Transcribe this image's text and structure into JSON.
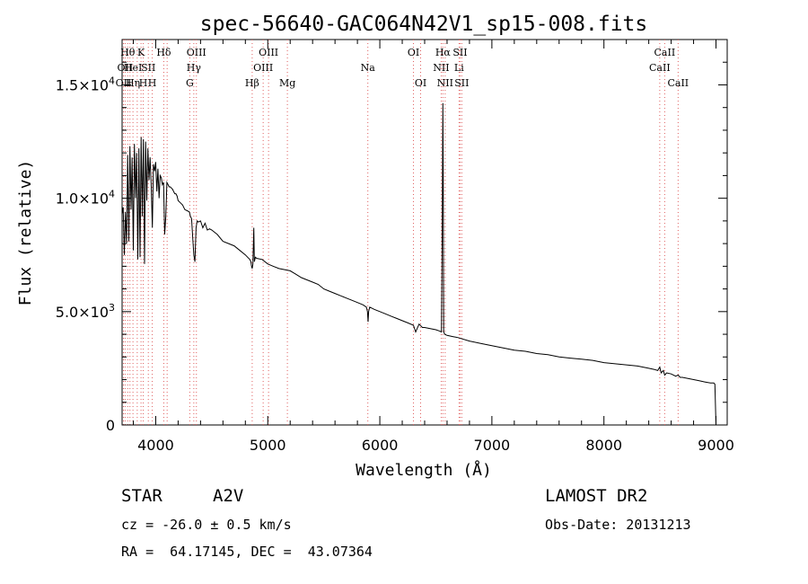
{
  "chart_data": {
    "type": "line",
    "title": "spec-56640-GAC064N42V1_sp15-008.fits",
    "xlabel": "Wavelength (Å)",
    "ylabel": "Flux (relative)",
    "xlim": [
      3700,
      9100
    ],
    "ylim": [
      0,
      17000
    ],
    "x_ticks": [
      4000,
      5000,
      6000,
      7000,
      8000,
      9000
    ],
    "x_tick_labels": [
      "4000",
      "5000",
      "6000",
      "7000",
      "8000",
      "9000"
    ],
    "y_ticks": [
      0,
      5000,
      10000,
      15000
    ],
    "y_tick_labels": [
      {
        "base": "0",
        "exp": ""
      },
      {
        "base": "5.0×10",
        "exp": "3"
      },
      {
        "base": "1.0×10",
        "exp": "4"
      },
      {
        "base": "1.5×10",
        "exp": "4"
      }
    ],
    "grid": false,
    "spectrum": {
      "x": [
        3700,
        3710,
        3720,
        3730,
        3740,
        3750,
        3760,
        3770,
        3780,
        3790,
        3800,
        3810,
        3820,
        3830,
        3840,
        3850,
        3860,
        3870,
        3880,
        3890,
        3900,
        3910,
        3920,
        3930,
        3940,
        3950,
        3960,
        3970,
        3980,
        3990,
        4000,
        4010,
        4020,
        4030,
        4040,
        4050,
        4060,
        4070,
        4080,
        4090,
        4100,
        4110,
        4120,
        4130,
        4140,
        4150,
        4160,
        4170,
        4180,
        4190,
        4200,
        4220,
        4240,
        4260,
        4280,
        4300,
        4310,
        4320,
        4330,
        4340,
        4350,
        4360,
        4370,
        4380,
        4400,
        4420,
        4440,
        4460,
        4480,
        4500,
        4550,
        4600,
        4650,
        4700,
        4750,
        4800,
        4820,
        4840,
        4850,
        4855,
        4861,
        4867,
        4875,
        4880,
        4890,
        4900,
        4950,
        5000,
        5050,
        5100,
        5150,
        5200,
        5250,
        5300,
        5350,
        5400,
        5450,
        5500,
        5550,
        5600,
        5650,
        5700,
        5750,
        5800,
        5850,
        5880,
        5890,
        5895,
        5900,
        5910,
        5950,
        6000,
        6050,
        6100,
        6150,
        6200,
        6250,
        6300,
        6320,
        6350,
        6380,
        6400,
        6450,
        6500,
        6530,
        6550,
        6556,
        6560,
        6563,
        6566,
        6570,
        6580,
        6600,
        6650,
        6700,
        6800,
        6900,
        7000,
        7100,
        7200,
        7300,
        7400,
        7500,
        7600,
        7700,
        7800,
        7900,
        8000,
        8100,
        8200,
        8300,
        8400,
        8450,
        8480,
        8498,
        8510,
        8530,
        8542,
        8560,
        8600,
        8640,
        8662,
        8680,
        8700,
        8750,
        8800,
        8850,
        8900,
        8950,
        8980,
        8990,
        9000
      ],
      "y": [
        9300,
        9600,
        7500,
        9400,
        8000,
        11900,
        8100,
        12300,
        9500,
        11800,
        7700,
        12400,
        10000,
        12000,
        7300,
        12200,
        7400,
        12700,
        9200,
        12600,
        7100,
        12500,
        9900,
        12200,
        10800,
        11800,
        10500,
        8700,
        11500,
        11200,
        11600,
        10300,
        11300,
        10000,
        11000,
        10900,
        10600,
        10700,
        8400,
        9200,
        10700,
        10600,
        10500,
        10500,
        10450,
        10400,
        10300,
        10200,
        10200,
        10100,
        9900,
        9800,
        9700,
        9500,
        9450,
        9400,
        9200,
        9100,
        8300,
        7500,
        7200,
        8700,
        9000,
        8950,
        9000,
        8700,
        8900,
        8600,
        8650,
        8600,
        8400,
        8100,
        8000,
        7900,
        7700,
        7500,
        7400,
        7300,
        7200,
        7000,
        6900,
        7100,
        8700,
        7200,
        7400,
        7350,
        7300,
        7100,
        7000,
        6900,
        6850,
        6800,
        6650,
        6500,
        6400,
        6300,
        6200,
        6000,
        5900,
        5800,
        5700,
        5600,
        5500,
        5400,
        5300,
        5200,
        5000,
        4550,
        5000,
        5200,
        5100,
        5000,
        4900,
        4800,
        4700,
        4600,
        4500,
        4400,
        4100,
        4450,
        4300,
        4300,
        4250,
        4200,
        4150,
        4100,
        8000,
        12000,
        14200,
        11000,
        4100,
        4000,
        3950,
        3900,
        3850,
        3700,
        3600,
        3500,
        3400,
        3300,
        3250,
        3150,
        3100,
        3000,
        2950,
        2900,
        2850,
        2750,
        2700,
        2650,
        2600,
        2500,
        2450,
        2400,
        2550,
        2300,
        2400,
        2200,
        2300,
        2250,
        2150,
        2200,
        2100,
        2100,
        2050,
        2000,
        1950,
        1900,
        1850,
        1850,
        1800,
        0
      ]
    },
    "lines": [
      {
        "w": 3712,
        "label": "OII",
        "row": 2
      },
      {
        "w": 3727,
        "label": "OII",
        "row": 1
      },
      {
        "w": 3750,
        "label": "Hθ",
        "row": 0
      },
      {
        "w": 3770,
        "label": "H",
        "row": 2
      },
      {
        "w": 3797,
        "label": "HeI",
        "row": 1
      },
      {
        "w": 3835,
        "label": "η",
        "row": 2
      },
      {
        "w": 3869,
        "label": "K",
        "row": 0
      },
      {
        "w": 3889,
        "label": "H",
        "row": 2
      },
      {
        "w": 3934,
        "label": "SII",
        "row": 1
      },
      {
        "w": 3969,
        "label": "H",
        "row": 2
      },
      {
        "w": 4072,
        "label": "Hδ",
        "row": 0
      },
      {
        "w": 4102,
        "label": "",
        "row": 0
      },
      {
        "w": 4304,
        "label": "G",
        "row": 2
      },
      {
        "w": 4340,
        "label": "Hγ",
        "row": 1
      },
      {
        "w": 4363,
        "label": "OIII",
        "row": 0
      },
      {
        "w": 4861,
        "label": "Hβ",
        "row": 2
      },
      {
        "w": 4959,
        "label": "OIII",
        "row": 1
      },
      {
        "w": 5007,
        "label": "OIII",
        "row": 0
      },
      {
        "w": 5175,
        "label": "Mg",
        "row": 2
      },
      {
        "w": 5893,
        "label": "Na",
        "row": 1
      },
      {
        "w": 6300,
        "label": "OI",
        "row": 0
      },
      {
        "w": 6364,
        "label": "OI",
        "row": 2
      },
      {
        "w": 6548,
        "label": "NII",
        "row": 1
      },
      {
        "w": 6563,
        "label": "Hα",
        "row": 0
      },
      {
        "w": 6583,
        "label": "NII",
        "row": 2
      },
      {
        "w": 6707,
        "label": "Li",
        "row": 1
      },
      {
        "w": 6716,
        "label": "SII",
        "row": 0
      },
      {
        "w": 6731,
        "label": "SII",
        "row": 2
      },
      {
        "w": 8498,
        "label": "CaII",
        "row": 1
      },
      {
        "w": 8542,
        "label": "CaII",
        "row": 0
      },
      {
        "w": 8662,
        "label": "CaII",
        "row": 2
      }
    ]
  },
  "info": {
    "object_class": "STAR",
    "subclass": "A2V",
    "survey": "LAMOST DR2",
    "redshift": "cz = -26.0 ± 0.5 km/s",
    "obs_date": "Obs-Date: 20131213",
    "coords": "RA =  64.17145, DEC =  43.07364"
  },
  "colors": {
    "line_markers": "#e06060",
    "spectrum": "#000000"
  }
}
